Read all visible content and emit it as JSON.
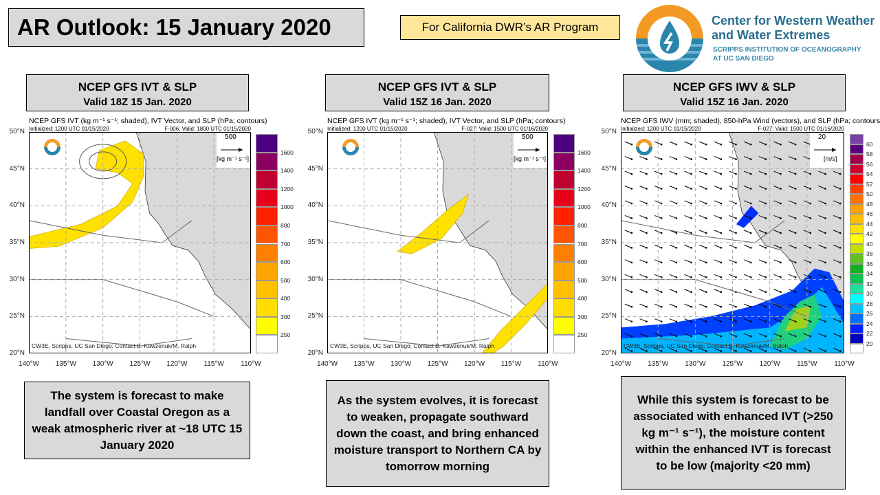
{
  "title": "AR Outlook: 15 January 2020",
  "program_label": "For California DWR’s AR Program",
  "logo": {
    "line1": "Center for Western Weather",
    "line2": "and Water Extremes",
    "line3": "SCRIPPS INSTITUTION OF OCEANOGRAPHY",
    "line4": "AT UC SAN DIEGO"
  },
  "panels": [
    {
      "header1": "NCEP GFS IVT & SLP",
      "header2": "Valid 18Z 15 Jan. 2020",
      "map_title": "NCEP GFS IVT (kg m⁻¹ s⁻¹; shaded), IVT Vector, and SLP (hPa; contours)",
      "init": "Initialized: 1200 UTC 01/15/2020",
      "valid": "F-006: Valid: 1800 UTC 01/15/2020",
      "ref_value": "500",
      "ref_units": "[kg m⁻¹ s⁻¹]",
      "description": "The system is forecast to make landfall over Coastal Oregon as a weak atmospheric river at ~18 UTC 15 January 2020"
    },
    {
      "header1": "NCEP GFS IVT & SLP",
      "header2": "Valid 15Z 16 Jan. 2020",
      "map_title": "NCEP GFS IVT (kg m⁻¹ s⁻¹; shaded), IVT Vector, and SLP (hPa; contours)",
      "init": "Initialized: 1200 UTC 01/15/2020",
      "valid": "F-027: Valid: 1500 UTC 01/16/2020",
      "ref_value": "500",
      "ref_units": "[kg m⁻¹ s⁻¹]",
      "description": "As the system evolves, it is forecast to weaken, propagate southward down the coast, and bring enhanced moisture transport to Northern CA by tomorrow morning"
    },
    {
      "header1": "NCEP GFS IWV & SLP",
      "header2": "Valid 15Z 16 Jan. 2020",
      "map_title": "NCEP GFS IWV (mm; shaded), 850-hPa Wind (vectors), and SLP (hPa; contours)",
      "init": "Initialized: 1200 UTC 01/15/2020",
      "valid": "F-027: Valid: 1500 UTC 01/16/2020",
      "ref_value": "20",
      "ref_units": "[m/s]",
      "description": "While this system is forecast to be associated with enhanced IVT (>250 kg m⁻¹ s⁻¹), the moisture content within the enhanced IVT is forecast to be low (majority <20 mm)"
    }
  ],
  "credit": "CW3E, Scripps, UC San Diego; Contact B. Kawzenuk/M. Ralph",
  "lat_labels": [
    "50°N",
    "45°N",
    "40°N",
    "35°N",
    "30°N",
    "25°N",
    "20°N"
  ],
  "lon_labels": [
    "140°W",
    "135°W",
    "130°W",
    "125°W",
    "120°W",
    "115°W",
    "110°W"
  ],
  "ivt_colorbar": {
    "labels": [
      "1600",
      "1400",
      "1200",
      "1000",
      "800",
      "700",
      "600",
      "500",
      "400",
      "300",
      "250"
    ],
    "colors": [
      "#4b0082",
      "#8b0060",
      "#c00030",
      "#e8001a",
      "#ff2000",
      "#ff5500",
      "#ff8000",
      "#ffa500",
      "#ffc000",
      "#ffdd00",
      "#ffff00",
      "#ffffff"
    ]
  },
  "iwv_colorbar": {
    "labels": [
      "60",
      "58",
      "56",
      "54",
      "52",
      "50",
      "48",
      "46",
      "44",
      "42",
      "40",
      "38",
      "36",
      "34",
      "32",
      "30",
      "28",
      "26",
      "24",
      "22",
      "20"
    ],
    "colors": [
      "#7b3fa8",
      "#5a0080",
      "#a0004a",
      "#d00030",
      "#ff0000",
      "#ff4000",
      "#ff7000",
      "#ffa000",
      "#ffc000",
      "#ffe000",
      "#ffff00",
      "#c0e000",
      "#60c020",
      "#10b020",
      "#10c050",
      "#20e0a0",
      "#00ffff",
      "#00c0ff",
      "#0070ff",
      "#0020ff",
      "#0000c0",
      "#ffffff"
    ]
  },
  "colors": {
    "land": "#d9d9d9",
    "ar_yellow": "#ffe100",
    "ar_orange": "#ffb000",
    "logo_orange": "#f39a25",
    "logo_blue": "#2a85ad"
  }
}
